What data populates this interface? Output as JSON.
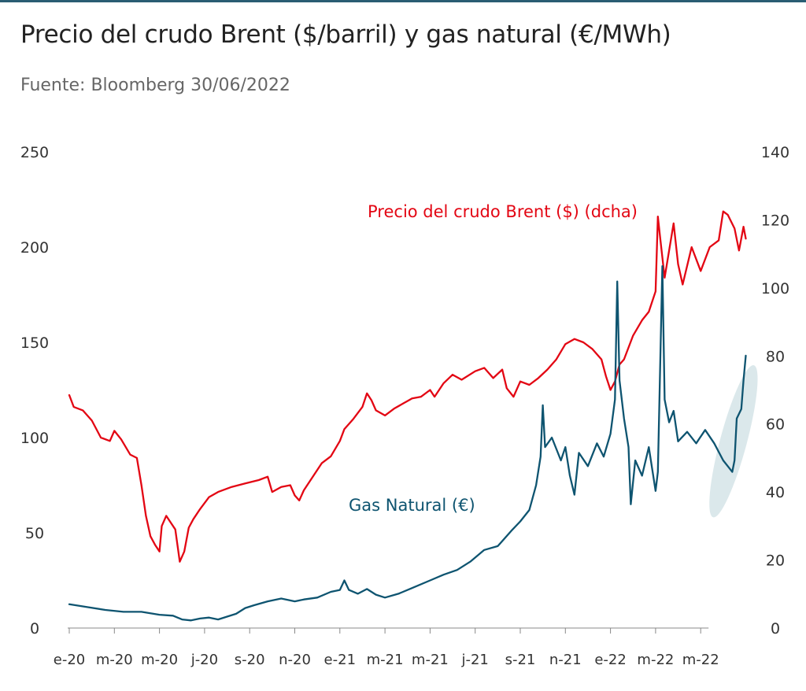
{
  "header": {
    "title": "Precio del crudo Brent ($/barril) y gas natural (€/MWh)",
    "subtitle": "Fuente: Bloomberg 30/06/2022"
  },
  "colors": {
    "brent": "#e30613",
    "gas": "#0e5470",
    "highlight": "#cfe0e4",
    "rule": "#2a5d73"
  },
  "chart_data": {
    "type": "line",
    "title": "Precio del crudo Brent ($/barril) y gas natural (€/MWh)",
    "subtitle": "Fuente: Bloomberg 30/06/2022",
    "x_ticks": [
      "e-20",
      "m-20",
      "m-20",
      "j-20",
      "s-20",
      "n-20",
      "e-21",
      "m-21",
      "m-21",
      "j-21",
      "s-21",
      "n-21",
      "e-22",
      "m-22",
      "m-22"
    ],
    "y_left": {
      "ticks": [
        0,
        50,
        100,
        150,
        200,
        250
      ],
      "range": [
        0,
        250
      ]
    },
    "y_right": {
      "ticks": [
        0,
        20,
        40,
        60,
        80,
        100,
        120,
        140
      ],
      "range": [
        0,
        140
      ]
    },
    "annotations": {
      "brent": "Precio del crudo Brent ($) (dcha)",
      "gas": "Gas Natural (€)"
    },
    "highlight": "Jun-2022 gas price surge (ellipse)",
    "series": [
      {
        "name": "Precio del crudo Brent ($) (dcha)",
        "axis": "right",
        "points": [
          [
            0.0,
            68.5
          ],
          [
            0.1,
            65.0
          ],
          [
            0.3,
            64.0
          ],
          [
            0.5,
            61.0
          ],
          [
            0.7,
            56.0
          ],
          [
            0.9,
            55.0
          ],
          [
            1.0,
            58.0
          ],
          [
            1.15,
            55.5
          ],
          [
            1.35,
            51.0
          ],
          [
            1.5,
            50.0
          ],
          [
            1.6,
            42.0
          ],
          [
            1.7,
            33.0
          ],
          [
            1.8,
            27.0
          ],
          [
            1.9,
            24.5
          ],
          [
            2.0,
            22.5
          ],
          [
            2.05,
            30.0
          ],
          [
            2.15,
            33.0
          ],
          [
            2.25,
            31.0
          ],
          [
            2.35,
            29.0
          ],
          [
            2.45,
            19.5
          ],
          [
            2.55,
            22.5
          ],
          [
            2.65,
            29.5
          ],
          [
            2.75,
            32.0
          ],
          [
            2.9,
            35.0
          ],
          [
            3.1,
            38.5
          ],
          [
            3.3,
            40.0
          ],
          [
            3.6,
            41.5
          ],
          [
            3.9,
            42.5
          ],
          [
            4.2,
            43.5
          ],
          [
            4.4,
            44.5
          ],
          [
            4.5,
            40.0
          ],
          [
            4.7,
            41.5
          ],
          [
            4.9,
            42.0
          ],
          [
            5.0,
            39.0
          ],
          [
            5.1,
            37.5
          ],
          [
            5.2,
            40.5
          ],
          [
            5.4,
            44.5
          ],
          [
            5.6,
            48.5
          ],
          [
            5.8,
            50.5
          ],
          [
            6.0,
            55.0
          ],
          [
            6.1,
            58.5
          ],
          [
            6.3,
            61.5
          ],
          [
            6.5,
            65.0
          ],
          [
            6.6,
            69.0
          ],
          [
            6.7,
            67.0
          ],
          [
            6.8,
            64.0
          ],
          [
            7.0,
            62.5
          ],
          [
            7.2,
            64.5
          ],
          [
            7.4,
            66.0
          ],
          [
            7.6,
            67.5
          ],
          [
            7.8,
            68.0
          ],
          [
            8.0,
            70.0
          ],
          [
            8.1,
            68.0
          ],
          [
            8.3,
            72.0
          ],
          [
            8.5,
            74.5
          ],
          [
            8.7,
            73.0
          ],
          [
            9.0,
            75.5
          ],
          [
            9.2,
            76.5
          ],
          [
            9.4,
            73.5
          ],
          [
            9.6,
            76.0
          ],
          [
            9.7,
            70.5
          ],
          [
            9.85,
            68.0
          ],
          [
            10.0,
            72.5
          ],
          [
            10.2,
            71.5
          ],
          [
            10.4,
            73.5
          ],
          [
            10.6,
            76.0
          ],
          [
            10.8,
            79.0
          ],
          [
            11.0,
            83.5
          ],
          [
            11.2,
            85.0
          ],
          [
            11.4,
            84.0
          ],
          [
            11.6,
            82.0
          ],
          [
            11.8,
            79.0
          ],
          [
            11.9,
            74.0
          ],
          [
            12.0,
            70.0
          ],
          [
            12.1,
            72.5
          ],
          [
            12.2,
            77.5
          ],
          [
            12.3,
            79.0
          ],
          [
            12.5,
            86.0
          ],
          [
            12.7,
            90.5
          ],
          [
            12.85,
            93.0
          ],
          [
            13.0,
            99.0
          ],
          [
            13.05,
            121.0
          ],
          [
            13.1,
            115.0
          ],
          [
            13.2,
            103.0
          ],
          [
            13.3,
            111.0
          ],
          [
            13.4,
            119.0
          ],
          [
            13.5,
            107.0
          ],
          [
            13.6,
            101.0
          ],
          [
            13.8,
            112.0
          ],
          [
            14.0,
            105.0
          ],
          [
            14.2,
            112.0
          ],
          [
            14.4,
            114.0
          ],
          [
            14.5,
            122.5
          ],
          [
            14.6,
            121.5
          ],
          [
            14.75,
            117.5
          ],
          [
            14.85,
            111.0
          ],
          [
            14.95,
            118.0
          ],
          [
            15.0,
            114.5
          ]
        ]
      },
      {
        "name": "Gas Natural (€)",
        "axis": "left",
        "points": [
          [
            0.0,
            12.5
          ],
          [
            0.4,
            11.0
          ],
          [
            0.8,
            9.5
          ],
          [
            1.2,
            8.5
          ],
          [
            1.6,
            8.5
          ],
          [
            2.0,
            7.0
          ],
          [
            2.3,
            6.5
          ],
          [
            2.5,
            4.5
          ],
          [
            2.7,
            4.0
          ],
          [
            2.9,
            5.0
          ],
          [
            3.1,
            5.5
          ],
          [
            3.3,
            4.5
          ],
          [
            3.5,
            6.0
          ],
          [
            3.7,
            7.5
          ],
          [
            3.9,
            10.5
          ],
          [
            4.1,
            12.0
          ],
          [
            4.4,
            14.0
          ],
          [
            4.7,
            15.5
          ],
          [
            5.0,
            14.0
          ],
          [
            5.2,
            15.0
          ],
          [
            5.5,
            16.0
          ],
          [
            5.8,
            19.0
          ],
          [
            6.0,
            20.0
          ],
          [
            6.1,
            25.0
          ],
          [
            6.2,
            20.0
          ],
          [
            6.4,
            18.0
          ],
          [
            6.6,
            20.5
          ],
          [
            6.8,
            17.5
          ],
          [
            7.0,
            16.0
          ],
          [
            7.3,
            18.0
          ],
          [
            7.6,
            21.0
          ],
          [
            8.0,
            25.0
          ],
          [
            8.3,
            28.0
          ],
          [
            8.6,
            30.5
          ],
          [
            8.9,
            35.0
          ],
          [
            9.2,
            41.0
          ],
          [
            9.5,
            43.0
          ],
          [
            9.8,
            51.0
          ],
          [
            10.0,
            56.0
          ],
          [
            10.2,
            62.0
          ],
          [
            10.35,
            75.0
          ],
          [
            10.45,
            90.0
          ],
          [
            10.5,
            117.0
          ],
          [
            10.55,
            95.0
          ],
          [
            10.7,
            100.0
          ],
          [
            10.9,
            88.0
          ],
          [
            11.0,
            95.0
          ],
          [
            11.1,
            80.0
          ],
          [
            11.2,
            70.0
          ],
          [
            11.3,
            92.0
          ],
          [
            11.5,
            85.0
          ],
          [
            11.7,
            97.0
          ],
          [
            11.85,
            90.0
          ],
          [
            12.0,
            102.0
          ],
          [
            12.1,
            120.0
          ],
          [
            12.15,
            182.0
          ],
          [
            12.2,
            130.0
          ],
          [
            12.3,
            110.0
          ],
          [
            12.4,
            95.0
          ],
          [
            12.45,
            65.0
          ],
          [
            12.55,
            88.0
          ],
          [
            12.7,
            80.0
          ],
          [
            12.85,
            95.0
          ],
          [
            13.0,
            72.0
          ],
          [
            13.05,
            82.0
          ],
          [
            13.15,
            190.0
          ],
          [
            13.2,
            120.0
          ],
          [
            13.3,
            108.0
          ],
          [
            13.4,
            114.0
          ],
          [
            13.5,
            98.0
          ],
          [
            13.7,
            103.0
          ],
          [
            13.9,
            97.0
          ],
          [
            14.1,
            104.0
          ],
          [
            14.3,
            97.0
          ],
          [
            14.5,
            88.0
          ],
          [
            14.6,
            85.0
          ],
          [
            14.7,
            82.0
          ],
          [
            14.75,
            88.0
          ],
          [
            14.8,
            110.0
          ],
          [
            14.9,
            115.0
          ],
          [
            14.95,
            130.0
          ],
          [
            15.0,
            143.0
          ]
        ]
      }
    ]
  }
}
